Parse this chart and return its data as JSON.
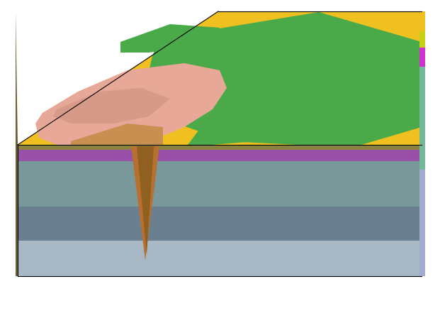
{
  "bg_color": "#ffffff",
  "figsize": [
    6.21,
    4.56
  ],
  "dpi": 100,
  "colors": {
    "yellow": "#f0c020",
    "yellow_dark": "#d4a800",
    "green": "#4aaa4a",
    "green_dark": "#3a8a3a",
    "pink": "#e8a898",
    "pink_dark": "#d89080",
    "olive": "#8a8440",
    "olive_light": "#a09840",
    "brown": "#b07030",
    "brown_light": "#c89050",
    "lime": "#c8d820",
    "magenta": "#e030d8",
    "teal_light": "#80c0a0",
    "lavender": "#b0b8d8",
    "purple": "#9050a8",
    "gray_green": "#788888",
    "gray_mid": "#7890a0",
    "gray_pale": "#a0b8c0",
    "gray_dark": "#606870",
    "gray_side": "#606870",
    "tunnel_brown": "#b87030",
    "tunnel_dark": "#906020",
    "teal_front": "#6898a0"
  }
}
